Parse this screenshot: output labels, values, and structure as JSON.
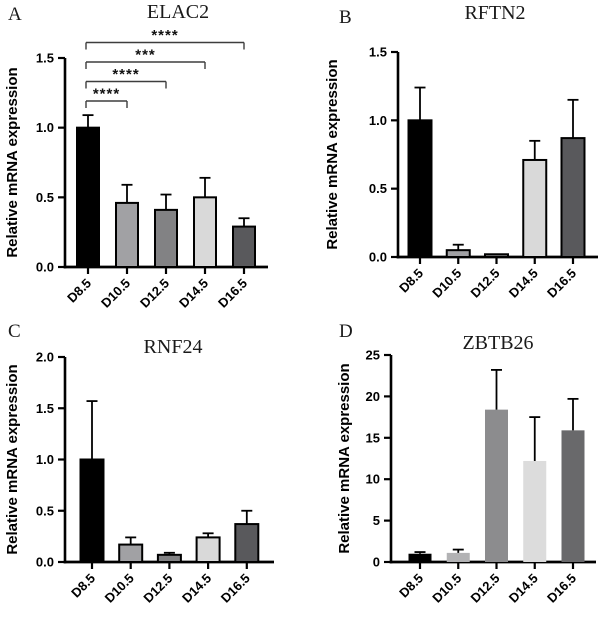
{
  "chart_data": [
    {
      "panel": "A",
      "type": "bar",
      "title": "ELAC2",
      "ylabel": "Relative mRNA expression",
      "categories": [
        "D8.5",
        "D10.5",
        "D12.5",
        "D14.5",
        "D16.5"
      ],
      "values": [
        1.0,
        0.46,
        0.41,
        0.5,
        0.29
      ],
      "errors": [
        0.09,
        0.13,
        0.11,
        0.14,
        0.06
      ],
      "ylim": [
        0,
        1.5
      ],
      "ytick_values": [
        0,
        0.5,
        1.0,
        1.5
      ],
      "ytick_labels": [
        "0.0",
        "0.5",
        "1.0",
        "1.5"
      ],
      "bar_colors": [
        "#000000",
        "#a1a1a4",
        "#828284",
        "#d9d9d9",
        "#59595c"
      ],
      "bar_border": true,
      "grid": false,
      "legend": "none",
      "significance": [
        {
          "from": "D8.5",
          "to": "D10.5",
          "stars": "****"
        },
        {
          "from": "D8.5",
          "to": "D12.5",
          "stars": "****"
        },
        {
          "from": "D8.5",
          "to": "D14.5",
          "stars": "***"
        },
        {
          "from": "D8.5",
          "to": "D16.5",
          "stars": "****"
        }
      ]
    },
    {
      "panel": "B",
      "type": "bar",
      "title": "RFTN2",
      "ylabel": "Relative mRNA expression",
      "categories": [
        "D8.5",
        "D10.5",
        "D12.5",
        "D14.5",
        "D16.5"
      ],
      "values": [
        1.0,
        0.05,
        0.02,
        0.71,
        0.87
      ],
      "errors": [
        0.24,
        0.04,
        0,
        0.14,
        0.28
      ],
      "ylim": [
        0,
        1.5
      ],
      "ytick_values": [
        0,
        0.5,
        1.0,
        1.5
      ],
      "ytick_labels": [
        "0.0",
        "0.5",
        "1.0",
        "1.5"
      ],
      "bar_colors": [
        "#000000",
        "#a1a1a4",
        "#828284",
        "#d9d9d9",
        "#59595c"
      ],
      "bar_border": true,
      "grid": false,
      "legend": "none",
      "significance": []
    },
    {
      "panel": "C",
      "type": "bar",
      "title": "RNF24",
      "ylabel": "Relative mRNA expression",
      "categories": [
        "D8.5",
        "D10.5",
        "D12.5",
        "D14.5",
        "D16.5"
      ],
      "values": [
        1.0,
        0.17,
        0.07,
        0.24,
        0.37
      ],
      "errors": [
        0.57,
        0.07,
        0.02,
        0.04,
        0.13
      ],
      "ylim": [
        0,
        2.0
      ],
      "ytick_values": [
        0,
        0.5,
        1.0,
        1.5,
        2.0
      ],
      "ytick_labels": [
        "0.0",
        "0.5",
        "1.0",
        "1.5",
        "2.0"
      ],
      "bar_colors": [
        "#000000",
        "#a1a1a4",
        "#828284",
        "#d9d9d9",
        "#59595c"
      ],
      "bar_border": true,
      "grid": false,
      "legend": "none",
      "significance": []
    },
    {
      "panel": "D",
      "type": "bar",
      "title": "ZBTB26",
      "ylabel": "Relative mRNA expression",
      "categories": [
        "D8.5",
        "D10.5",
        "D12.5",
        "D14.5",
        "D16.5"
      ],
      "values": [
        1.0,
        1.1,
        18.4,
        12.2,
        15.9
      ],
      "errors": [
        0.2,
        0.4,
        4.8,
        5.3,
        3.8
      ],
      "ylim": [
        0,
        25
      ],
      "ytick_values": [
        0,
        5,
        10,
        15,
        20,
        25
      ],
      "ytick_labels": [
        "0",
        "5",
        "10",
        "15",
        "20",
        "25"
      ],
      "bar_colors": [
        "#000000",
        "#b2b2b4",
        "#8c8c8e",
        "#dcdcdc",
        "#69696b"
      ],
      "bar_border": false,
      "grid": false,
      "legend": "none",
      "significance": []
    }
  ],
  "style": {
    "background": "#ffffff",
    "axis_color": "#000000",
    "error_bar_color": "#000000",
    "sig_line_color": "#3d3d3d"
  }
}
